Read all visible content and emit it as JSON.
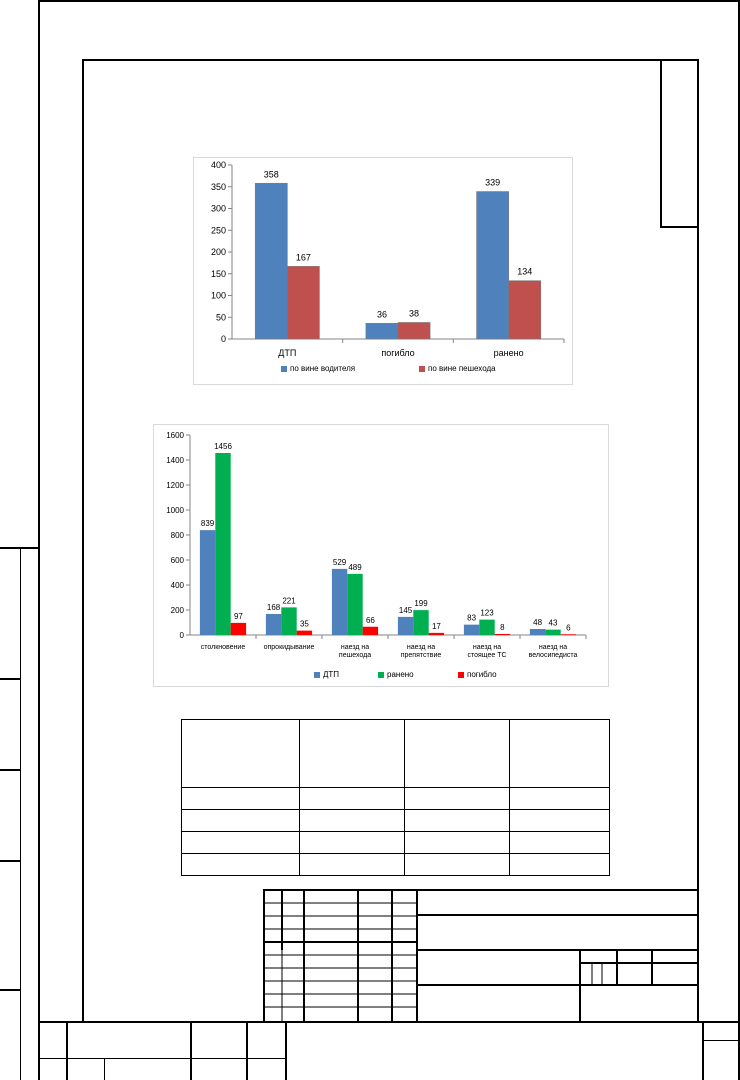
{
  "chart_data": [
    {
      "type": "bar",
      "categories": [
        "ДТП",
        "погибло",
        "ранено"
      ],
      "series": [
        {
          "name": "по вине водителя",
          "values": [
            358,
            36,
            339
          ],
          "color": "#4f81bd"
        },
        {
          "name": "по вине пешехода",
          "values": [
            167,
            38,
            134
          ],
          "color": "#c0504d"
        }
      ],
      "yticks": [
        0,
        50,
        100,
        150,
        200,
        250,
        300,
        350,
        400
      ],
      "ylim": [
        0,
        400
      ],
      "grid": false,
      "legend": "bottom"
    },
    {
      "type": "bar",
      "categories": [
        "столкновение",
        "опрокидывание",
        "наезд на пешехода",
        "наезд на препятствие",
        "наезд на стоящее ТС",
        "наезд на велосипедиста"
      ],
      "category_lines": [
        [
          "столкновение"
        ],
        [
          "опрокидывание"
        ],
        [
          "наезд на",
          "пешехода"
        ],
        [
          "наезд на",
          "препятствие"
        ],
        [
          "наезд на",
          "стоящее ТС"
        ],
        [
          "наезд на",
          "велосипедиста"
        ]
      ],
      "series": [
        {
          "name": "ДТП",
          "values": [
            839,
            168,
            529,
            145,
            83,
            48
          ],
          "color": "#4f81bd"
        },
        {
          "name": "ранено",
          "values": [
            1456,
            221,
            489,
            199,
            123,
            43
          ],
          "color": "#00b050"
        },
        {
          "name": "погибло",
          "values": [
            97,
            35,
            66,
            17,
            8,
            6
          ],
          "color": "#ff0000"
        }
      ],
      "yticks": [
        0,
        200,
        400,
        600,
        800,
        1000,
        1200,
        1400,
        1600
      ],
      "ylim": [
        0,
        1600
      ],
      "grid": false,
      "legend": "bottom"
    }
  ]
}
